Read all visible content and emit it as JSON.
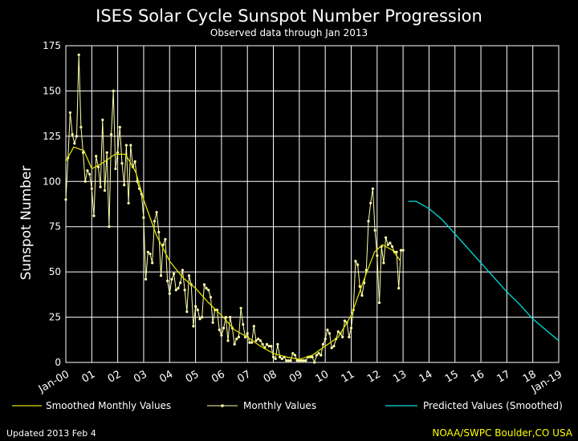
{
  "page": {
    "footer_left": "Updated 2013 Feb  4",
    "footer_right": "NOAA/SWPC Boulder,CO USA"
  },
  "colors": {
    "background": "#000000",
    "axes": "#ffffff",
    "grid": "#ffffff",
    "smoothed": "#e0e000",
    "monthly": "#ffffaa",
    "predicted": "#00dddd",
    "credit": "#ffff00"
  },
  "chart_data": {
    "type": "line",
    "title": "ISES Solar Cycle Sunspot Number Progression",
    "subtitle": "Observed data through Jan 2013",
    "ylabel": "Sunspot Number",
    "xlabel": "",
    "ylim": [
      0,
      175
    ],
    "yticks": [
      0,
      25,
      50,
      75,
      100,
      125,
      150,
      175
    ],
    "xlim": [
      2000.0,
      2019.0
    ],
    "xticks": [
      {
        "value": 2000,
        "label": "Jan-00"
      },
      {
        "value": 2001,
        "label": "01"
      },
      {
        "value": 2002,
        "label": "02"
      },
      {
        "value": 2003,
        "label": "03"
      },
      {
        "value": 2004,
        "label": "04"
      },
      {
        "value": 2005,
        "label": "05"
      },
      {
        "value": 2006,
        "label": "06"
      },
      {
        "value": 2007,
        "label": "07"
      },
      {
        "value": 2008,
        "label": "08"
      },
      {
        "value": 2009,
        "label": "09"
      },
      {
        "value": 2010,
        "label": "10"
      },
      {
        "value": 2011,
        "label": "11"
      },
      {
        "value": 2012,
        "label": "12"
      },
      {
        "value": 2013,
        "label": "13"
      },
      {
        "value": 2014,
        "label": "14"
      },
      {
        "value": 2015,
        "label": "15"
      },
      {
        "value": 2016,
        "label": "16"
      },
      {
        "value": 2017,
        "label": "17"
      },
      {
        "value": 2018,
        "label": "18"
      },
      {
        "value": 2019,
        "label": "Jan-19"
      }
    ],
    "grid": true,
    "legend": {
      "position": "bottom",
      "entries": [
        "Smoothed Monthly Values",
        "Monthly Values",
        "Predicted Values (Smoothed)"
      ]
    },
    "series": [
      {
        "name": "Monthly Values",
        "style": "line-with-markers",
        "x_start": 2000.0,
        "x_step_months": 1,
        "values": [
          90,
          113,
          138,
          126,
          121,
          125,
          170,
          130,
          116,
          100,
          106,
          104,
          96,
          81,
          114,
          108,
          97,
          134,
          95,
          116,
          75,
          126,
          150,
          107,
          116,
          130,
          110,
          98,
          120,
          88,
          120,
          108,
          111,
          100,
          96,
          93,
          80,
          46,
          61,
          60,
          55,
          78,
          83,
          72,
          48,
          65,
          68,
          45,
          38,
          46,
          49,
          40,
          41,
          44,
          51,
          40,
          28,
          48,
          43,
          20,
          31,
          29,
          24,
          25,
          43,
          41,
          40,
          36,
          22,
          29,
          29,
          18,
          15,
          19,
          25,
          12,
          25,
          19,
          10,
          13,
          14,
          30,
          21,
          14,
          16,
          11,
          11,
          20,
          12,
          13,
          12,
          10,
          8,
          10,
          9,
          9,
          3,
          2,
          10,
          3,
          2,
          3,
          1,
          1,
          1,
          5,
          4,
          1,
          1,
          1,
          1,
          1,
          3,
          3,
          3,
          0,
          4,
          5,
          4,
          10,
          13,
          18,
          16,
          8,
          9,
          13,
          17,
          16,
          14,
          23,
          22,
          14,
          19,
          29,
          56,
          54,
          42,
          37,
          44,
          51,
          78,
          88,
          96,
          73,
          59,
          33,
          64,
          55,
          69,
          65,
          66,
          64,
          61,
          61,
          41,
          62,
          62
        ]
      },
      {
        "name": "Smoothed Monthly Values",
        "style": "line",
        "points": [
          [
            2000.0,
            111
          ],
          [
            2000.3,
            119
          ],
          [
            2000.7,
            117
          ],
          [
            2001.0,
            107
          ],
          [
            2001.4,
            110
          ],
          [
            2001.9,
            115
          ],
          [
            2002.3,
            115
          ],
          [
            2002.7,
            105
          ],
          [
            2003.0,
            90
          ],
          [
            2003.5,
            70
          ],
          [
            2004.0,
            56
          ],
          [
            2004.5,
            47
          ],
          [
            2005.0,
            41
          ],
          [
            2005.5,
            33
          ],
          [
            2006.0,
            26
          ],
          [
            2006.5,
            18
          ],
          [
            2007.0,
            14
          ],
          [
            2007.5,
            9
          ],
          [
            2008.0,
            5
          ],
          [
            2008.5,
            3
          ],
          [
            2009.0,
            1.7
          ],
          [
            2009.5,
            4
          ],
          [
            2010.0,
            9
          ],
          [
            2010.5,
            14
          ],
          [
            2011.0,
            26
          ],
          [
            2011.5,
            46
          ],
          [
            2011.9,
            61
          ],
          [
            2012.2,
            65
          ],
          [
            2012.6,
            62
          ],
          [
            2012.9,
            56
          ]
        ]
      },
      {
        "name": "Predicted Values (Smoothed)",
        "style": "line",
        "points": [
          [
            2013.2,
            89
          ],
          [
            2013.5,
            89
          ],
          [
            2014.0,
            85
          ],
          [
            2014.5,
            79
          ],
          [
            2015.0,
            71
          ],
          [
            2015.5,
            63
          ],
          [
            2016.0,
            55
          ],
          [
            2016.5,
            47
          ],
          [
            2017.0,
            39
          ],
          [
            2017.5,
            32
          ],
          [
            2018.0,
            24
          ],
          [
            2018.5,
            18
          ],
          [
            2019.0,
            12
          ]
        ]
      }
    ]
  }
}
